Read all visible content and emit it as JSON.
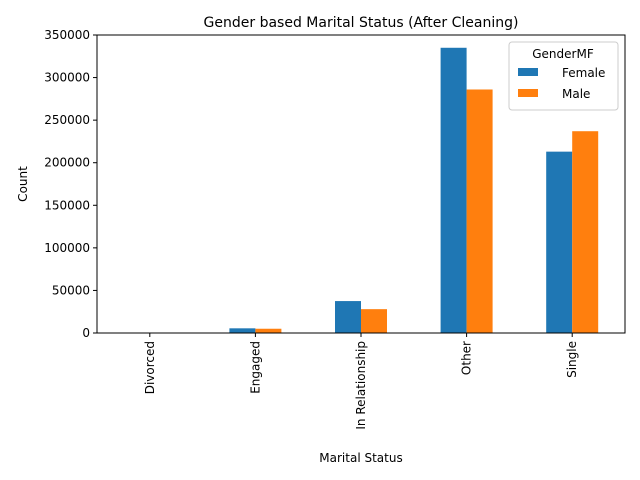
{
  "chart_data": {
    "type": "bar",
    "title": "Gender based Marital Status (After Cleaning)",
    "xlabel": "Marital Status",
    "ylabel": "Count",
    "categories": [
      "Divorced",
      "Engaged",
      "In Relationship",
      "Other",
      "Single"
    ],
    "series": [
      {
        "name": "Female",
        "color": "#1f77b4",
        "values": [
          500,
          5500,
          37500,
          335000,
          213000
        ]
      },
      {
        "name": "Male",
        "color": "#ff7f0e",
        "values": [
          300,
          5000,
          28000,
          286000,
          237000
        ]
      }
    ],
    "ylim": [
      0,
      350000
    ],
    "yticks": [
      "0",
      "50000",
      "100000",
      "150000",
      "200000",
      "250000",
      "300000",
      "350000"
    ],
    "legend": {
      "title": "GenderMF",
      "position": "top-right"
    },
    "grid": false
  }
}
